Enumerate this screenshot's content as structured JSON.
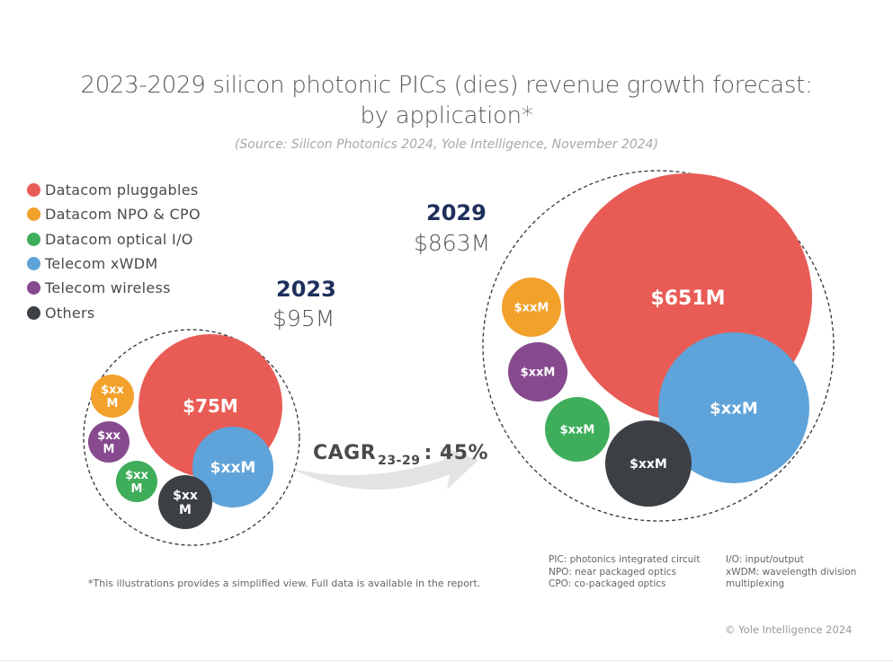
{
  "chart_data": {
    "type": "bubble",
    "title": "2023-2029 silicon photonic PICs (dies) revenue growth forecast:",
    "title_line2": "by application*",
    "subtitle": "(Source: Silicon Photonics 2024, Yole Intelligence, November 2024)",
    "legend": [
      {
        "name": "Datacom pluggables",
        "color": "#e85c55"
      },
      {
        "name": "Datacom NPO & CPO",
        "color": "#f2a12b"
      },
      {
        "name": "Datacom optical I/O",
        "color": "#3fae5a"
      },
      {
        "name": "Telecom xWDM",
        "color": "#5ea3d9"
      },
      {
        "name": "Telecom wireless",
        "color": "#874a8f"
      },
      {
        "name": "Others",
        "color": "#3c4045"
      }
    ],
    "legend_position": "top-left",
    "groups": [
      {
        "year": "2023",
        "total_label": "$95M",
        "total_value": 95,
        "bubbles": [
          {
            "series": "Datacom pluggables",
            "label": "$75M",
            "value": 75,
            "color": "#e85c55"
          },
          {
            "series": "Telecom xWDM",
            "label": "$xxM",
            "value": null,
            "color": "#5ea3d9"
          },
          {
            "series": "Datacom NPO & CPO",
            "label": "$xx M",
            "value": null,
            "color": "#f2a12b"
          },
          {
            "series": "Telecom wireless",
            "label": "$xx M",
            "value": null,
            "color": "#874a8f"
          },
          {
            "series": "Datacom optical I/O",
            "label": "$xx M",
            "value": null,
            "color": "#3fae5a"
          },
          {
            "series": "Others",
            "label": "$xx M",
            "value": null,
            "color": "#3c4045"
          }
        ]
      },
      {
        "year": "2029",
        "total_label": "$863M",
        "total_value": 863,
        "bubbles": [
          {
            "series": "Datacom pluggables",
            "label": "$651M",
            "value": 651,
            "color": "#e85c55"
          },
          {
            "series": "Telecom xWDM",
            "label": "$xxM",
            "value": null,
            "color": "#5ea3d9"
          },
          {
            "series": "Datacom NPO & CPO",
            "label": "$xxM",
            "value": null,
            "color": "#f2a12b"
          },
          {
            "series": "Telecom wireless",
            "label": "$xxM",
            "value": null,
            "color": "#874a8f"
          },
          {
            "series": "Datacom optical I/O",
            "label": "$xxM",
            "value": null,
            "color": "#3fae5a"
          },
          {
            "series": "Others",
            "label": "$xxM",
            "value": null,
            "color": "#3c4045"
          }
        ]
      }
    ],
    "annotation": {
      "cagr_prefix": "CAGR",
      "cagr_period": "23-29",
      "cagr_value": ": 45%",
      "cagr_percent": 45
    }
  },
  "footnote": "*This illustrations provides a simplified view. Full data is available in the report.",
  "abbreviations_col1": [
    "PIC: photonics integrated circuit",
    "NPO: near packaged optics",
    "CPO: co-packaged optics"
  ],
  "abbreviations_col2": [
    "I/O: input/output",
    "xWDM: wavelength division",
    "multiplexing"
  ],
  "copyright": "© Yole Intelligence 2024"
}
